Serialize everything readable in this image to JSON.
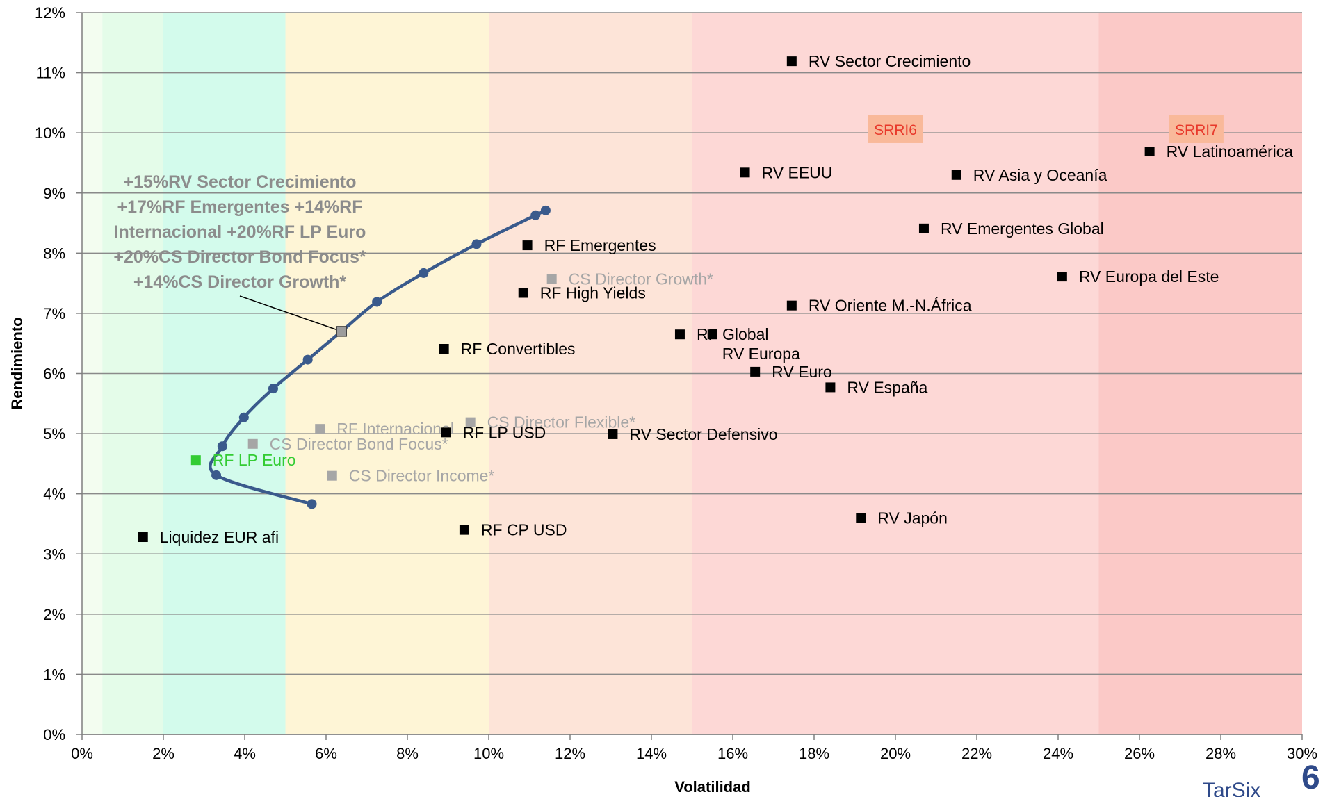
{
  "chart_data": {
    "type": "scatter",
    "xlabel": "Volatilidad",
    "ylabel": "Rendimiento",
    "xlim": [
      0,
      30
    ],
    "ylim": [
      0,
      12
    ],
    "x_ticks": [
      "0%",
      "2%",
      "4%",
      "6%",
      "8%",
      "10%",
      "12%",
      "14%",
      "16%",
      "18%",
      "20%",
      "22%",
      "24%",
      "26%",
      "28%",
      "30%"
    ],
    "y_ticks": [
      "0%",
      "1%",
      "2%",
      "3%",
      "4%",
      "5%",
      "6%",
      "7%",
      "8%",
      "9%",
      "10%",
      "11%",
      "12%"
    ],
    "grid": "horizontal",
    "risk_bands": [
      {
        "from": 0,
        "to": 0.5,
        "color": "#f3fdf0"
      },
      {
        "from": 0.5,
        "to": 2,
        "color": "#e4fce9"
      },
      {
        "from": 2,
        "to": 5,
        "color": "#d3fbec"
      },
      {
        "from": 5,
        "to": 10,
        "color": "#fef5d6"
      },
      {
        "from": 10,
        "to": 15,
        "color": "#fde4d8"
      },
      {
        "from": 15,
        "to": 25,
        "color": "#fdd8d6"
      },
      {
        "from": 25,
        "to": 30,
        "color": "#fbc9c7"
      }
    ],
    "srri_labels": [
      {
        "text": "SRRI6",
        "x": 20.0,
        "y": 10.06
      },
      {
        "text": "SRRI7",
        "x": 27.4,
        "y": 10.06
      }
    ],
    "efficient_frontier": {
      "color": "#3a5a8c",
      "points": [
        [
          5.65,
          3.83
        ],
        [
          3.3,
          4.31
        ],
        [
          3.45,
          4.79
        ],
        [
          3.98,
          5.27
        ],
        [
          4.7,
          5.75
        ],
        [
          5.55,
          6.23
        ],
        [
          6.38,
          6.7
        ],
        [
          7.25,
          7.19
        ],
        [
          8.4,
          7.67
        ],
        [
          9.7,
          8.15
        ],
        [
          11.15,
          8.63
        ],
        [
          11.4,
          8.71
        ]
      ]
    },
    "series": [
      {
        "name": "RV Sector Crecimiento",
        "x": 17.45,
        "y": 11.19,
        "color": "#000000"
      },
      {
        "name": "RV Latinoamérica",
        "x": 26.25,
        "y": 9.69,
        "color": "#000000"
      },
      {
        "name": "RV EEUU",
        "x": 16.3,
        "y": 9.34,
        "color": "#000000"
      },
      {
        "name": "RV Asia y Oceanía",
        "x": 21.5,
        "y": 9.3,
        "color": "#000000"
      },
      {
        "name": "RV Emergentes Global",
        "x": 20.7,
        "y": 8.41,
        "color": "#000000"
      },
      {
        "name": "RF Emergentes",
        "x": 10.95,
        "y": 8.13,
        "color": "#000000"
      },
      {
        "name": "RV Europa del Este",
        "x": 24.1,
        "y": 7.61,
        "color": "#000000"
      },
      {
        "name": "CS Director Growth*",
        "x": 11.55,
        "y": 7.57,
        "color": "#a6a6a6"
      },
      {
        "name": "RF High Yields",
        "x": 10.85,
        "y": 7.34,
        "color": "#000000"
      },
      {
        "name": "RV Oriente M.-N.África",
        "x": 17.45,
        "y": 7.13,
        "color": "#000000"
      },
      {
        "name": "RF Global",
        "x": 14.7,
        "y": 6.65,
        "color": "#000000"
      },
      {
        "name": "RV Europa",
        "x": 15.5,
        "y": 6.65,
        "color": "#000000"
      },
      {
        "name": "RF Convertibles",
        "x": 8.9,
        "y": 6.41,
        "color": "#000000"
      },
      {
        "name": "RV Euro",
        "x": 16.55,
        "y": 6.03,
        "color": "#000000"
      },
      {
        "name": "RV España",
        "x": 18.4,
        "y": 5.77,
        "color": "#000000"
      },
      {
        "name": "CS Director Flexible*",
        "x": 9.55,
        "y": 5.19,
        "color": "#a6a6a6"
      },
      {
        "name": "RF Internacional",
        "x": 5.85,
        "y": 5.08,
        "color": "#a6a6a6"
      },
      {
        "name": "RF LP USD",
        "x": 8.95,
        "y": 5.02,
        "color": "#000000"
      },
      {
        "name": "RV Sector Defensivo",
        "x": 13.05,
        "y": 4.99,
        "color": "#000000"
      },
      {
        "name": "CS Director Bond Focus*",
        "x": 4.2,
        "y": 4.83,
        "color": "#a6a6a6"
      },
      {
        "name": "RF LP Euro",
        "x": 2.8,
        "y": 4.56,
        "color": "#33cc33"
      },
      {
        "name": "CS Director Income*",
        "x": 6.15,
        "y": 4.3,
        "color": "#a6a6a6"
      },
      {
        "name": "RV Japón",
        "x": 19.15,
        "y": 3.6,
        "color": "#000000"
      },
      {
        "name": "RF CP USD",
        "x": 9.4,
        "y": 3.4,
        "color": "#000000"
      },
      {
        "name": "Liquidez EUR afi",
        "x": 1.5,
        "y": 3.28,
        "color": "#000000"
      }
    ],
    "annotation": {
      "lines": [
        "+15%RV Sector Crecimiento",
        "+17%RF Emergentes +14%RF",
        "Internacional +20%RF LP Euro",
        "+20%CS Director Bond Focus*",
        "+14%CS Director Growth*"
      ],
      "target_x": 6.38,
      "target_y": 6.7
    }
  },
  "logo": {
    "text": "TarSix",
    "digit": "6"
  }
}
